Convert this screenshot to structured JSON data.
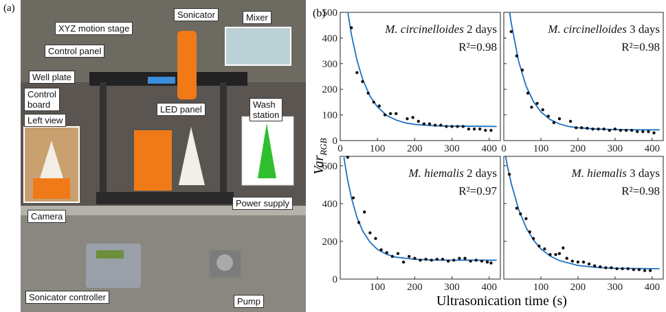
{
  "panel_a": {
    "label": "(a)",
    "labels": [
      {
        "lines": [
          "Sonicator"
        ]
      },
      {
        "lines": [
          "XYZ motion stage"
        ]
      },
      {
        "lines": [
          "Mixer"
        ]
      },
      {
        "lines": [
          "Control panel"
        ]
      },
      {
        "lines": [
          "Well plate"
        ]
      },
      {
        "lines": [
          "Control",
          "board"
        ]
      },
      {
        "lines": [
          "LED panel"
        ]
      },
      {
        "lines": [
          "Wash",
          "station"
        ]
      },
      {
        "lines": [
          "Left view"
        ]
      },
      {
        "lines": [
          "Camera"
        ]
      },
      {
        "lines": [
          "Power supply"
        ]
      },
      {
        "lines": [
          "Sonicator controller"
        ]
      },
      {
        "lines": [
          "Pump"
        ]
      }
    ]
  },
  "panel_b": {
    "label": "(b)",
    "ylabel": "Var",
    "ylabel_subscript": "RGB",
    "xlabel": "Ultrasonication time (s)"
  },
  "chart_data": [
    {
      "type": "scatter",
      "species": "M. circinelloides",
      "age": "2 days",
      "r2": "R²=0.98",
      "xlim": [
        0,
        430
      ],
      "ylim": [
        0,
        500
      ],
      "xticks": [
        0,
        100,
        200,
        300,
        400
      ],
      "yticks": [
        0,
        100,
        200,
        300,
        400,
        500
      ],
      "ytick_labels": true,
      "point_color": "#111111",
      "fit_color": "#1f6fbf",
      "points": {
        "x": [
          30,
          45,
          60,
          75,
          90,
          105,
          120,
          135,
          150,
          180,
          195,
          210,
          225,
          240,
          255,
          270,
          285,
          300,
          315,
          330,
          345,
          360,
          375,
          390,
          405
        ],
        "y": [
          440,
          265,
          230,
          185,
          150,
          135,
          100,
          105,
          105,
          85,
          90,
          75,
          65,
          65,
          60,
          60,
          55,
          55,
          55,
          55,
          45,
          45,
          45,
          40,
          40
        ]
      },
      "fit": {
        "x": [
          20,
          30,
          45,
          60,
          80,
          100,
          125,
          150,
          175,
          200,
          250,
          300,
          350,
          420
        ],
        "y": [
          504,
          414,
          313,
          240,
          173,
          131,
          98,
          80,
          69,
          63,
          58,
          56,
          56,
          55
        ]
      }
    },
    {
      "type": "scatter",
      "species": "M. circinelloides",
      "age": "3 days",
      "r2": "R²=0.98",
      "xlim": [
        0,
        430
      ],
      "ylim": [
        0,
        500
      ],
      "xticks": [
        0,
        100,
        200,
        300,
        400
      ],
      "yticks": [
        0,
        100,
        200,
        300,
        400,
        500
      ],
      "ytick_labels": false,
      "point_color": "#111111",
      "fit_color": "#1f6fbf",
      "points": {
        "x": [
          20,
          35,
          50,
          65,
          75,
          90,
          105,
          120,
          135,
          150,
          180,
          195,
          210,
          225,
          240,
          255,
          270,
          285,
          300,
          315,
          330,
          345,
          360,
          375,
          390,
          405
        ],
        "y": [
          425,
          330,
          275,
          185,
          130,
          145,
          120,
          95,
          70,
          85,
          75,
          50,
          50,
          48,
          45,
          45,
          45,
          40,
          45,
          40,
          40,
          40,
          35,
          35,
          35,
          30
        ]
      },
      "fit": {
        "x": [
          15,
          20,
          40,
          60,
          80,
          100,
          125,
          150,
          175,
          200,
          250,
          300,
          350,
          420
        ],
        "y": [
          508,
          459,
          309,
          213,
          152,
          112,
          82,
          65,
          55,
          50,
          45,
          43,
          42,
          42
        ]
      }
    },
    {
      "type": "scatter",
      "species": "M. hiemalis",
      "age": "2 days",
      "r2": "R²=0.97",
      "xlim": [
        0,
        430
      ],
      "ylim": [
        0,
        650
      ],
      "xticks": [
        100,
        200,
        300,
        400
      ],
      "yticks": [
        0,
        200,
        400,
        600
      ],
      "ytick_labels": true,
      "point_color": "#111111",
      "fit_color": "#1f6fbf",
      "points": {
        "x": [
          20,
          35,
          50,
          65,
          80,
          95,
          110,
          125,
          140,
          155,
          170,
          185,
          200,
          215,
          230,
          245,
          260,
          275,
          290,
          305,
          320,
          335,
          350,
          365,
          380,
          395,
          405
        ],
        "y": [
          645,
          430,
          300,
          355,
          245,
          215,
          155,
          140,
          120,
          135,
          90,
          120,
          110,
          100,
          105,
          100,
          105,
          105,
          95,
          100,
          110,
          110,
          95,
          100,
          95,
          90,
          85
        ]
      },
      "fit": {
        "x": [
          10,
          15,
          20,
          30,
          45,
          60,
          80,
          100,
          125,
          150,
          200,
          250,
          300,
          420
        ],
        "y": [
          645,
          581,
          525,
          431,
          327,
          256,
          195,
          157,
          131,
          116,
          105,
          101,
          100,
          100
        ]
      }
    },
    {
      "type": "scatter",
      "species": "M. hiemalis",
      "age": "3 days",
      "r2": "R²=0.98",
      "xlim": [
        0,
        430
      ],
      "ylim": [
        0,
        650
      ],
      "xticks": [
        100,
        200,
        300,
        400
      ],
      "yticks": [
        0,
        200,
        400,
        600
      ],
      "ytick_labels": false,
      "point_color": "#111111",
      "fit_color": "#1f6fbf",
      "points": {
        "x": [
          15,
          35,
          45,
          60,
          70,
          80,
          95,
          110,
          125,
          140,
          150,
          160,
          170,
          185,
          200,
          215,
          230,
          245,
          260,
          275,
          290,
          305,
          320,
          335,
          350,
          365,
          380,
          395
        ],
        "y": [
          555,
          375,
          345,
          320,
          250,
          215,
          175,
          160,
          130,
          130,
          135,
          165,
          110,
          95,
          90,
          90,
          80,
          70,
          65,
          60,
          60,
          55,
          55,
          55,
          50,
          50,
          45,
          45
        ]
      },
      "fit": {
        "x": [
          5,
          10,
          20,
          40,
          60,
          80,
          100,
          125,
          150,
          200,
          250,
          300,
          350,
          420
        ],
        "y": [
          648,
          596,
          507,
          369,
          273,
          207,
          160,
          122,
          98,
          72,
          62,
          57,
          56,
          55
        ]
      }
    }
  ]
}
